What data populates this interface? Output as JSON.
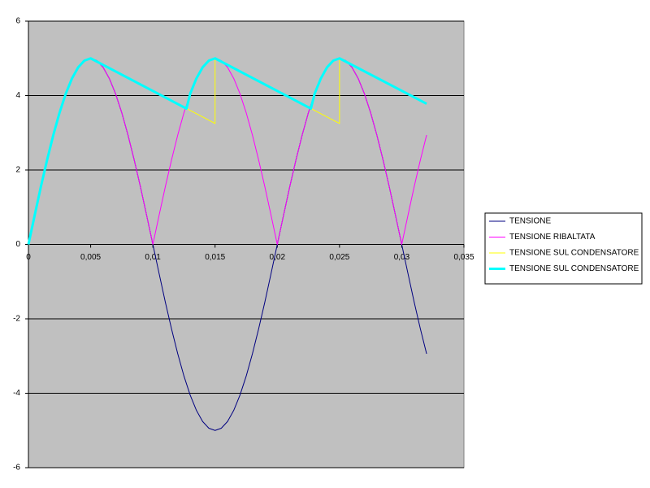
{
  "chart_data": {
    "type": "line",
    "x": [
      0,
      0.0005,
      0.001,
      0.0015,
      0.002,
      0.0025,
      0.003,
      0.0035,
      0.004,
      0.0045,
      0.005,
      0.0055,
      0.006,
      0.0065,
      0.007,
      0.0075,
      0.008,
      0.0085,
      0.009,
      0.0095,
      0.01,
      0.0105,
      0.011,
      0.0115,
      0.012,
      0.0125,
      0.013,
      0.0135,
      0.014,
      0.0145,
      0.015,
      0.0155,
      0.016,
      0.0165,
      0.017,
      0.0175,
      0.018,
      0.0185,
      0.019,
      0.0195,
      0.02,
      0.0205,
      0.021,
      0.0215,
      0.022,
      0.0225,
      0.023,
      0.0235,
      0.024,
      0.0245,
      0.025,
      0.0255,
      0.026,
      0.0265,
      0.027,
      0.0275,
      0.028,
      0.0285,
      0.029,
      0.0295,
      0.03,
      0.0305,
      0.031,
      0.0315,
      0.032
    ],
    "series": [
      {
        "name": "TENSIONE",
        "color": "#000080",
        "width": 1,
        "values": [
          0,
          0.78,
          1.55,
          2.27,
          2.94,
          3.54,
          4.05,
          4.46,
          4.76,
          4.94,
          5,
          4.94,
          4.76,
          4.46,
          4.05,
          3.54,
          2.94,
          2.27,
          1.55,
          0.78,
          0,
          -0.78,
          -1.55,
          -2.27,
          -2.94,
          -3.54,
          -4.05,
          -4.46,
          -4.76,
          -4.94,
          -5,
          -4.94,
          -4.76,
          -4.46,
          -4.05,
          -3.54,
          -2.94,
          -2.27,
          -1.55,
          -0.78,
          0,
          0.78,
          1.55,
          2.27,
          2.94,
          3.54,
          4.05,
          4.46,
          4.76,
          4.94,
          5,
          4.94,
          4.76,
          4.46,
          4.05,
          3.54,
          2.94,
          2.27,
          1.55,
          0.78,
          0,
          -0.78,
          -1.55,
          -2.27,
          -2.94
        ]
      },
      {
        "name": "TENSIONE RIBALTATA",
        "color": "#ff00ff",
        "width": 1,
        "values": [
          0,
          0.78,
          1.55,
          2.27,
          2.94,
          3.54,
          4.05,
          4.46,
          4.76,
          4.94,
          5,
          4.94,
          4.76,
          4.46,
          4.05,
          3.54,
          2.94,
          2.27,
          1.55,
          0.78,
          0,
          0.78,
          1.55,
          2.27,
          2.94,
          3.54,
          4.05,
          4.46,
          4.76,
          4.94,
          5,
          4.94,
          4.76,
          4.46,
          4.05,
          3.54,
          2.94,
          2.27,
          1.55,
          0.78,
          0,
          0.78,
          1.55,
          2.27,
          2.94,
          3.54,
          4.05,
          4.46,
          4.76,
          4.94,
          5,
          4.94,
          4.76,
          4.46,
          4.05,
          3.54,
          2.94,
          2.27,
          1.55,
          0.78,
          0,
          0.78,
          1.55,
          2.27,
          2.94
        ]
      },
      {
        "name": "TENSIONE SUL CONDENSATORE",
        "color": "#ffff00",
        "width": 1,
        "x": [
          0,
          0.0005,
          0.001,
          0.0015,
          0.002,
          0.0025,
          0.003,
          0.0035,
          0.004,
          0.0045,
          0.005,
          0.015,
          0.015,
          0.025,
          0.025,
          0.032
        ],
        "values": [
          0,
          0.78,
          1.55,
          2.27,
          2.94,
          3.54,
          4.05,
          4.46,
          4.76,
          4.94,
          5,
          3.25,
          5,
          3.25,
          5,
          3.78
        ]
      },
      {
        "name": "TENSIONE SUL CONDENSATORE",
        "color": "#00ffff",
        "width": 3,
        "x": [
          0,
          0.0005,
          0.001,
          0.0015,
          0.002,
          0.0025,
          0.003,
          0.0035,
          0.004,
          0.0045,
          0.005,
          0.0127,
          0.013,
          0.0135,
          0.014,
          0.0145,
          0.015,
          0.0227,
          0.023,
          0.0235,
          0.024,
          0.0245,
          0.025,
          0.032
        ],
        "values": [
          0,
          0.78,
          1.55,
          2.27,
          2.94,
          3.54,
          4.05,
          4.46,
          4.76,
          4.94,
          5,
          3.65,
          4.05,
          4.46,
          4.76,
          4.94,
          5,
          3.65,
          4.05,
          4.46,
          4.76,
          4.94,
          5,
          3.78
        ]
      }
    ],
    "xlim": [
      0,
      0.035
    ],
    "xticks": [
      0,
      {
        "value": 0.005,
        "label": "0,005"
      },
      {
        "value": 0.01,
        "label": "0,01"
      },
      {
        "value": 0.015,
        "label": "0,015"
      },
      {
        "value": 0.02,
        "label": "0,02"
      },
      {
        "value": 0.025,
        "label": "0,025"
      },
      {
        "value": 0.03,
        "label": "0,03"
      },
      {
        "value": 0.035,
        "label": "0,035"
      }
    ],
    "ylim": [
      -6,
      6
    ],
    "yticks": [
      -6,
      -4,
      -2,
      0,
      2,
      4,
      6
    ],
    "grid": true,
    "plot_background": "#c0c0c0",
    "legend": "right"
  }
}
